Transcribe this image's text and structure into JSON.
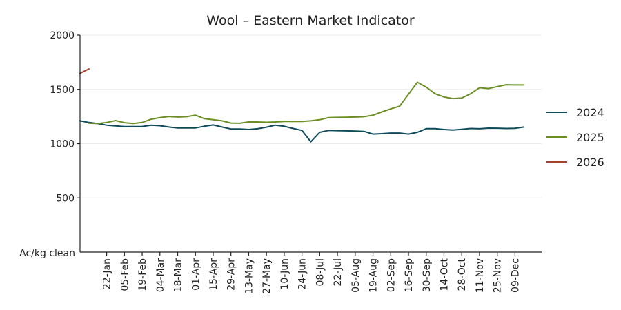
{
  "chart_data": {
    "type": "line",
    "title": "Wool – Eastern Market Indicator",
    "ylabel": "Ac/kg clean",
    "ylim": [
      0,
      2000
    ],
    "yticks": [
      500,
      1000,
      1500,
      2000
    ],
    "grid": true,
    "legend": "right",
    "xlim": [
      1,
      53
    ],
    "x_tick_positions": [
      4,
      6,
      8,
      10,
      12,
      14,
      16,
      18,
      20,
      22,
      24,
      26,
      28,
      30,
      32,
      34,
      36,
      38,
      40,
      42,
      44,
      46,
      48,
      50
    ],
    "x_tick_labels": [
      "22-Jan",
      "05-Feb",
      "19-Feb",
      "04-Mar",
      "18-Mar",
      "01-Apr",
      "15-Apr",
      "29-Apr",
      "13-May",
      "27-May",
      "10-Jun",
      "24-Jun",
      "08-Jul",
      "22-Jul",
      "05-Aug",
      "19-Aug",
      "02-Sep",
      "16-Sep",
      "30-Sep",
      "14-Oct",
      "28-Oct",
      "11-Nov",
      "25-Nov",
      "09-Dec"
    ],
    "series": [
      {
        "name": "2024",
        "color": "#0f4a5a",
        "x": [
          1,
          2,
          3,
          4,
          5,
          6,
          7,
          8,
          9,
          10,
          11,
          12,
          13,
          14,
          15,
          16,
          17,
          18,
          19,
          20,
          21,
          22,
          23,
          24,
          25,
          26,
          27,
          28,
          29,
          30,
          31,
          32,
          33,
          34,
          35,
          36,
          37,
          38,
          39,
          40,
          41,
          42,
          43,
          44,
          45,
          46,
          47,
          48,
          49,
          50,
          51
        ],
        "values": [
          1210,
          1195,
          1185,
          1170,
          1163,
          1157,
          1157,
          1158,
          1170,
          1165,
          1153,
          1145,
          1145,
          1145,
          1160,
          1172,
          1153,
          1135,
          1135,
          1130,
          1137,
          1152,
          1170,
          1160,
          1140,
          1122,
          1018,
          1105,
          1122,
          1120,
          1118,
          1116,
          1113,
          1088,
          1092,
          1098,
          1098,
          1088,
          1105,
          1138,
          1138,
          1130,
          1125,
          1132,
          1140,
          1137,
          1143,
          1142,
          1140,
          1141,
          1153
        ]
      },
      {
        "name": "2025",
        "color": "#6b8e23",
        "x": [
          2,
          3,
          4,
          5,
          6,
          7,
          8,
          9,
          10,
          11,
          12,
          13,
          14,
          15,
          16,
          17,
          18,
          19,
          20,
          21,
          22,
          23,
          24,
          25,
          26,
          27,
          28,
          29,
          30,
          31,
          32,
          33,
          34,
          35,
          36,
          37,
          38,
          39,
          40,
          41,
          42,
          43,
          44,
          45,
          46,
          47,
          48,
          49,
          50,
          51
        ],
        "values": [
          1188,
          1185,
          1195,
          1213,
          1193,
          1186,
          1195,
          1225,
          1240,
          1250,
          1245,
          1248,
          1262,
          1230,
          1220,
          1210,
          1190,
          1188,
          1200,
          1200,
          1197,
          1200,
          1205,
          1205,
          1205,
          1210,
          1220,
          1240,
          1242,
          1243,
          1245,
          1248,
          1262,
          1292,
          1320,
          1345,
          1455,
          1565,
          1520,
          1460,
          1430,
          1415,
          1420,
          1460,
          1515,
          1507,
          1525,
          1542,
          1540,
          1540
        ]
      },
      {
        "name": "2026",
        "color": "#a0432a",
        "x": [
          1,
          2
        ],
        "values": [
          1648,
          1688
        ]
      }
    ]
  }
}
